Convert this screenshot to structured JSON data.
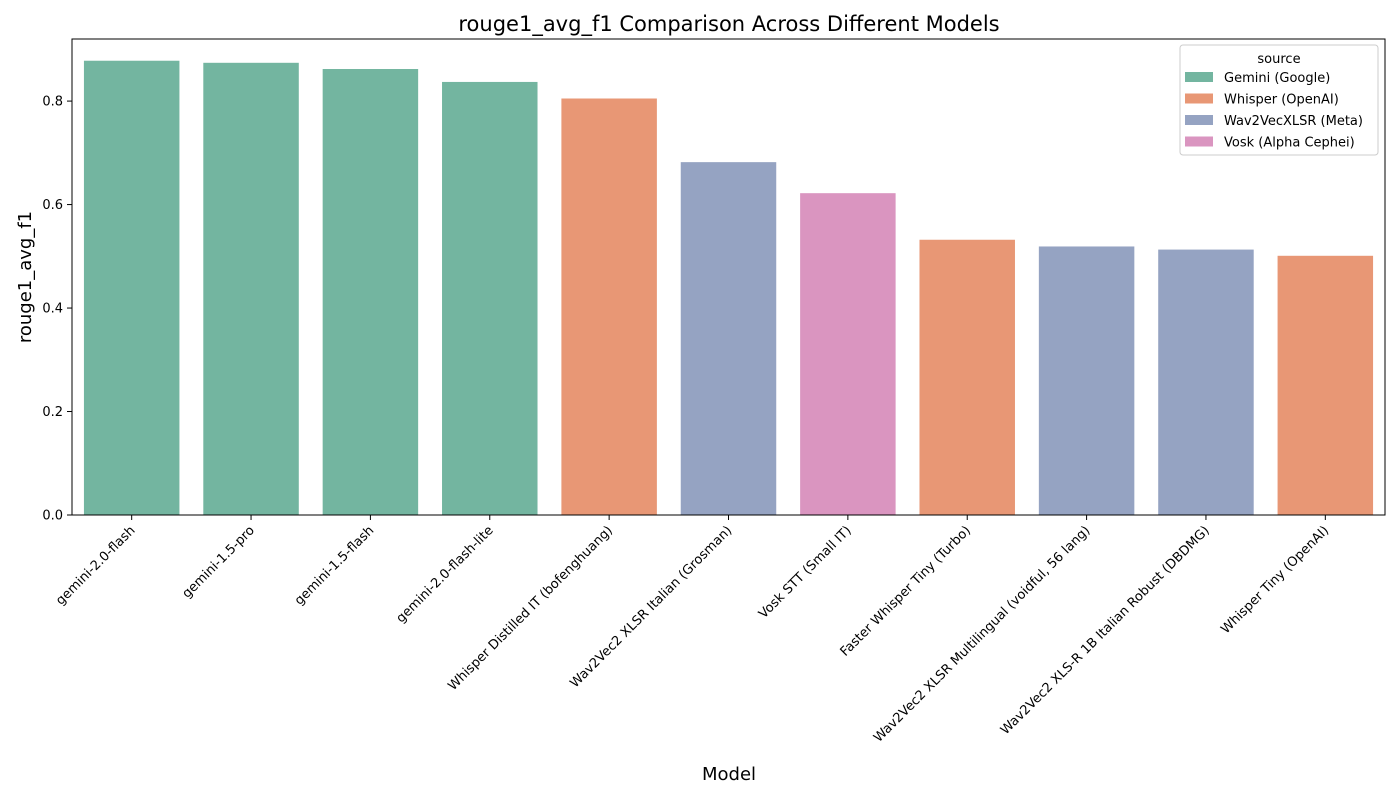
{
  "chart_data": {
    "type": "bar",
    "title": "rouge1_avg_f1 Comparison Across Different Models",
    "xlabel": "Model",
    "ylabel": "rouge1_avg_f1",
    "ylim": [
      0,
      0.92
    ],
    "yticks": [
      "0.0",
      "0.2",
      "0.4",
      "0.6",
      "0.8"
    ],
    "grid": false,
    "legend": {
      "title": "source",
      "placement": "top-right",
      "entries": [
        {
          "label": "Gemini (Google)",
          "color": "#73b5a0"
        },
        {
          "label": "Whisper (OpenAI)",
          "color": "#e89775"
        },
        {
          "label": "Wav2VecXLSR (Meta)",
          "color": "#95a3c2"
        },
        {
          "label": "Vosk (Alpha Cephei)",
          "color": "#da95c0"
        }
      ]
    },
    "categories": [
      "gemini-2.0-flash",
      "gemini-1.5-pro",
      "gemini-1.5-flash",
      "gemini-2.0-flash-lite",
      "Whisper Distilled IT (bofenghuang)",
      "Wav2Vec2 XLSR Italian (Grosman)",
      "Vosk STT (Small IT)",
      "Faster Whisper Tiny (Turbo)",
      "Wav2Vec2 XLSR Multilingual (voidful, 56 lang)",
      "Wav2Vec2 XLS-R 1B Italian Robust (DBDMG)",
      "Whisper Tiny (OpenAI)"
    ],
    "values": [
      0.878,
      0.874,
      0.862,
      0.837,
      0.805,
      0.682,
      0.622,
      0.532,
      0.519,
      0.513,
      0.501
    ],
    "sources": [
      "Gemini (Google)",
      "Gemini (Google)",
      "Gemini (Google)",
      "Gemini (Google)",
      "Whisper (OpenAI)",
      "Wav2VecXLSR (Meta)",
      "Vosk (Alpha Cephei)",
      "Whisper (OpenAI)",
      "Wav2VecXLSR (Meta)",
      "Wav2VecXLSR (Meta)",
      "Whisper (OpenAI)"
    ]
  }
}
